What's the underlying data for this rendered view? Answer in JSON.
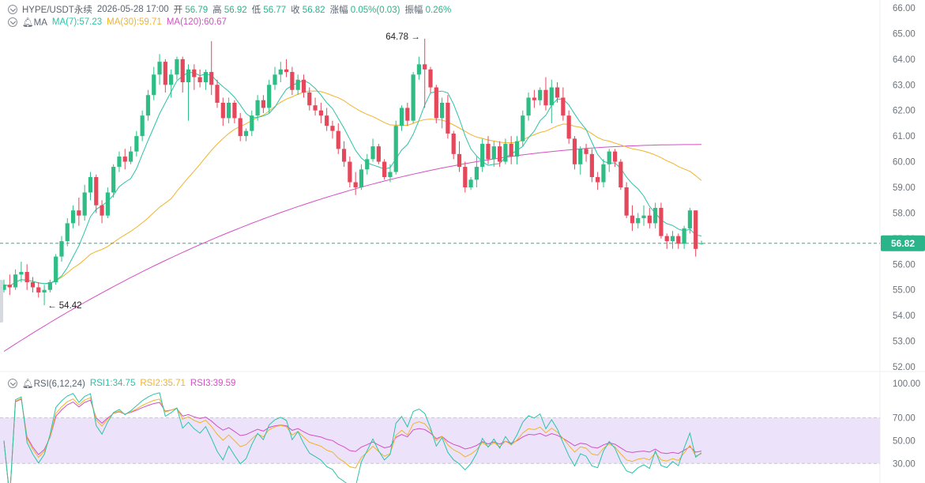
{
  "header": {
    "symbol": "HYPE/USDT永续",
    "datetime": "2026-05-28 17:00",
    "open_label": "开",
    "open": "56.79",
    "high_label": "高",
    "high": "56.92",
    "low_label": "低",
    "low": "56.77",
    "close_label": "收",
    "close": "56.82",
    "change_label": "涨幅",
    "change": "0.05%(0.03)",
    "amp_label": "振幅",
    "amp": "0.26%"
  },
  "ma_legend": {
    "label": "MA",
    "ma7": "MA(7):57.23",
    "ma30": "MA(30):59.71",
    "ma120": "MA(120):60.67"
  },
  "rsi_legend": {
    "label": "RSI(6,12,24)",
    "rsi1": "RSI1:34.75",
    "rsi2": "RSI2:35.71",
    "rsi3": "RSI3:39.59"
  },
  "colors": {
    "up": "#2ebd85",
    "down": "#e5475b",
    "ma7": "#2bc3a8",
    "ma30": "#f0b429",
    "ma120": "#d44fc4",
    "rsi_band": "#ece3fb",
    "price_tag": "#2bb38a"
  },
  "chart_data": [
    {
      "type": "candlestick",
      "title": "",
      "y_ticks": [
        "66.00",
        "65.00",
        "64.00",
        "63.00",
        "62.00",
        "61.00",
        "60.00",
        "59.00",
        "58.00",
        "57.00",
        "56.00",
        "55.00",
        "54.00",
        "53.00",
        "52.00"
      ],
      "ylim": [
        52,
        66
      ],
      "current_price": "56.82",
      "max_marker": "64.78",
      "min_marker": "54.42",
      "candles": [
        [
          55.0,
          55.4,
          54.9,
          55.2
        ],
        [
          55.2,
          55.6,
          54.8,
          55.1
        ],
        [
          55.1,
          55.8,
          55.0,
          55.6
        ],
        [
          55.6,
          56.1,
          55.3,
          55.7
        ],
        [
          55.7,
          56.0,
          55.0,
          55.3
        ],
        [
          55.3,
          55.5,
          54.9,
          55.1
        ],
        [
          55.1,
          55.3,
          54.7,
          54.9
        ],
        [
          54.9,
          55.2,
          54.4,
          55.0
        ],
        [
          55.0,
          55.4,
          54.9,
          55.3
        ],
        [
          55.3,
          56.4,
          55.2,
          56.3
        ],
        [
          56.3,
          57.1,
          56.1,
          56.9
        ],
        [
          56.9,
          57.8,
          56.7,
          57.6
        ],
        [
          57.6,
          58.3,
          57.4,
          58.1
        ],
        [
          58.1,
          58.6,
          57.5,
          57.9
        ],
        [
          57.9,
          59.1,
          57.7,
          58.8
        ],
        [
          58.8,
          59.6,
          58.5,
          59.4
        ],
        [
          59.4,
          59.5,
          58.0,
          58.3
        ],
        [
          58.3,
          58.5,
          57.6,
          57.9
        ],
        [
          57.9,
          59.0,
          57.8,
          58.8
        ],
        [
          58.8,
          59.9,
          58.6,
          59.8
        ],
        [
          59.8,
          60.4,
          59.6,
          60.2
        ],
        [
          60.2,
          60.5,
          59.7,
          60.0
        ],
        [
          60.0,
          60.6,
          59.9,
          60.4
        ],
        [
          60.4,
          61.2,
          60.2,
          61.0
        ],
        [
          61.0,
          62.0,
          60.8,
          61.8
        ],
        [
          61.8,
          62.8,
          61.6,
          62.6
        ],
        [
          62.6,
          63.7,
          62.4,
          63.4
        ],
        [
          63.4,
          64.2,
          63.0,
          63.9
        ],
        [
          63.9,
          64.0,
          62.7,
          63.0
        ],
        [
          63.0,
          63.6,
          62.5,
          63.4
        ],
        [
          63.4,
          64.1,
          63.2,
          64.0
        ],
        [
          64.0,
          64.1,
          62.7,
          63.1
        ],
        [
          63.1,
          63.8,
          61.6,
          63.6
        ],
        [
          63.6,
          63.8,
          62.8,
          63.3
        ],
        [
          63.3,
          63.6,
          62.9,
          63.1
        ],
        [
          63.1,
          63.6,
          62.8,
          63.5
        ],
        [
          63.5,
          64.7,
          62.6,
          63.0
        ],
        [
          63.0,
          63.2,
          62.1,
          62.3
        ],
        [
          62.3,
          62.5,
          61.4,
          61.7
        ],
        [
          61.7,
          62.5,
          61.5,
          62.3
        ],
        [
          62.3,
          62.4,
          61.5,
          61.7
        ],
        [
          61.7,
          61.9,
          60.8,
          61.0
        ],
        [
          61.0,
          61.3,
          60.8,
          61.2
        ],
        [
          61.2,
          62.0,
          61.0,
          61.8
        ],
        [
          61.8,
          62.6,
          61.6,
          62.4
        ],
        [
          62.4,
          62.6,
          61.9,
          62.1
        ],
        [
          62.1,
          63.2,
          61.9,
          63.0
        ],
        [
          63.0,
          63.7,
          62.8,
          63.4
        ],
        [
          63.4,
          63.9,
          63.1,
          63.6
        ],
        [
          63.6,
          64.0,
          63.3,
          63.5
        ],
        [
          63.5,
          63.7,
          62.6,
          62.8
        ],
        [
          62.8,
          63.4,
          62.6,
          63.2
        ],
        [
          63.2,
          63.4,
          62.5,
          62.7
        ],
        [
          62.7,
          62.9,
          62.0,
          62.2
        ],
        [
          62.2,
          62.5,
          61.8,
          62.0
        ],
        [
          62.0,
          62.3,
          61.5,
          61.8
        ],
        [
          61.8,
          62.1,
          61.2,
          61.4
        ],
        [
          61.4,
          61.6,
          60.9,
          61.2
        ],
        [
          61.2,
          61.5,
          60.3,
          60.5
        ],
        [
          60.5,
          60.8,
          59.8,
          60.0
        ],
        [
          60.0,
          60.2,
          59.0,
          59.2
        ],
        [
          59.2,
          59.6,
          58.7,
          59.0
        ],
        [
          59.0,
          59.9,
          58.9,
          59.7
        ],
        [
          59.7,
          60.3,
          59.5,
          60.1
        ],
        [
          60.1,
          60.9,
          60.0,
          60.6
        ],
        [
          60.6,
          60.7,
          59.9,
          60.0
        ],
        [
          60.0,
          60.1,
          59.3,
          59.4
        ],
        [
          59.4,
          59.9,
          59.2,
          59.6
        ],
        [
          59.6,
          61.6,
          59.5,
          61.4
        ],
        [
          61.4,
          62.2,
          61.2,
          62.1
        ],
        [
          62.1,
          62.3,
          61.4,
          61.6
        ],
        [
          61.6,
          63.5,
          61.5,
          63.4
        ],
        [
          63.4,
          64.1,
          63.2,
          63.8
        ],
        [
          63.8,
          64.8,
          62.1,
          63.6
        ],
        [
          63.6,
          63.7,
          62.7,
          62.9
        ],
        [
          62.9,
          63.0,
          61.5,
          61.7
        ],
        [
          61.7,
          62.5,
          61.3,
          62.3
        ],
        [
          62.3,
          62.6,
          60.9,
          61.1
        ],
        [
          61.1,
          61.2,
          60.1,
          60.3
        ],
        [
          60.3,
          60.8,
          59.6,
          59.8
        ],
        [
          59.8,
          60.0,
          58.8,
          59.0
        ],
        [
          59.0,
          59.4,
          58.9,
          59.3
        ],
        [
          59.3,
          60.2,
          59.0,
          59.8
        ],
        [
          59.8,
          60.9,
          59.6,
          60.7
        ],
        [
          60.7,
          61.0,
          59.9,
          60.1
        ],
        [
          60.1,
          60.8,
          59.8,
          60.6
        ],
        [
          60.6,
          60.8,
          59.8,
          60.0
        ],
        [
          60.0,
          60.9,
          59.9,
          60.7
        ],
        [
          60.7,
          61.0,
          59.9,
          60.2
        ],
        [
          60.2,
          61.0,
          59.9,
          60.8
        ],
        [
          60.8,
          62.0,
          60.6,
          61.8
        ],
        [
          61.8,
          62.7,
          61.6,
          62.5
        ],
        [
          62.5,
          62.8,
          62.1,
          62.4
        ],
        [
          62.4,
          62.9,
          62.2,
          62.8
        ],
        [
          62.8,
          63.3,
          62.0,
          62.2
        ],
        [
          62.2,
          63.2,
          61.5,
          62.9
        ],
        [
          62.9,
          63.1,
          62.3,
          62.5
        ],
        [
          62.5,
          62.9,
          61.6,
          61.8
        ],
        [
          61.8,
          62.0,
          60.7,
          60.9
        ],
        [
          60.9,
          61.0,
          59.7,
          59.9
        ],
        [
          59.9,
          60.6,
          59.5,
          60.5
        ],
        [
          60.5,
          60.7,
          60.0,
          60.3
        ],
        [
          60.3,
          60.5,
          59.2,
          59.4
        ],
        [
          59.4,
          59.6,
          58.9,
          59.2
        ],
        [
          59.2,
          60.1,
          59.0,
          59.9
        ],
        [
          59.9,
          60.5,
          59.6,
          60.4
        ],
        [
          60.4,
          60.5,
          59.8,
          60.0
        ],
        [
          60.0,
          60.1,
          58.9,
          59.0
        ],
        [
          59.0,
          59.2,
          57.8,
          57.9
        ],
        [
          57.9,
          58.3,
          57.3,
          57.6
        ],
        [
          57.6,
          58.0,
          57.4,
          57.8
        ],
        [
          57.8,
          58.3,
          57.5,
          57.9
        ],
        [
          57.9,
          58.2,
          57.4,
          57.6
        ],
        [
          57.6,
          58.4,
          57.4,
          58.2
        ],
        [
          58.2,
          58.4,
          57.0,
          57.1
        ],
        [
          57.1,
          57.2,
          56.6,
          56.9
        ],
        [
          56.9,
          57.3,
          56.6,
          57.1
        ],
        [
          57.1,
          57.2,
          56.6,
          56.8
        ],
        [
          56.8,
          57.5,
          56.6,
          57.4
        ],
        [
          57.4,
          58.2,
          57.2,
          58.1
        ],
        [
          58.1,
          58.1,
          56.3,
          56.6
        ],
        [
          56.79,
          56.92,
          56.77,
          56.82
        ]
      ]
    },
    {
      "type": "line",
      "title": "",
      "y_ticks": [
        "100.00",
        "70.00",
        "50.00",
        "30.00"
      ],
      "ylim": [
        15,
        100
      ],
      "band": [
        30,
        70
      ]
    }
  ]
}
